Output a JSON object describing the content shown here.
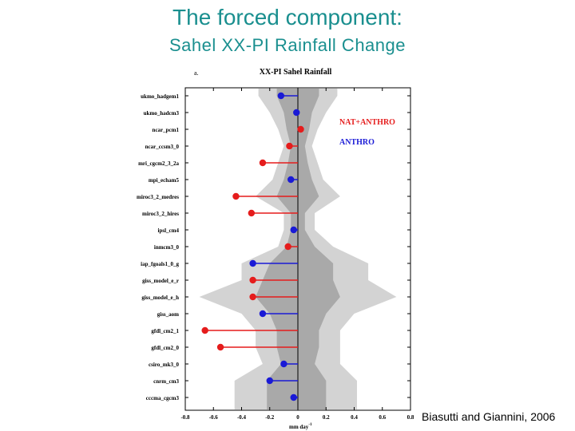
{
  "header": {
    "title": "The forced component:",
    "subtitle": "Sahel XX-PI Rainfall Change"
  },
  "credit": "Biasutti and Giannini, 2006",
  "chart_data": {
    "type": "lollipop",
    "panel_label": "a.",
    "title": "XX-PI Sahel Rainfall",
    "xlabel": "mm day",
    "xlabel_exp": "-1",
    "xlim": [
      -0.8,
      0.8
    ],
    "xticks": [
      "-0.8",
      "-0.6",
      "-0.4",
      "-0.2",
      "0",
      "0.2",
      "0.4",
      "0.6",
      "0.8"
    ],
    "legend": [
      {
        "label": "NAT+ANTHRO",
        "color": "#e51c1c"
      },
      {
        "label": "ANTHRO",
        "color": "#1a1ad6"
      }
    ],
    "models": [
      {
        "name": "ukmo_hadgem1",
        "value": -0.12,
        "group": "ANTHRO"
      },
      {
        "name": "ukmo_hadcm3",
        "value": -0.01,
        "group": "ANTHRO"
      },
      {
        "name": "ncar_pcm1",
        "value": 0.02,
        "group": "NAT+ANTHRO"
      },
      {
        "name": "ncar_ccsm3_0",
        "value": -0.06,
        "group": "NAT+ANTHRO"
      },
      {
        "name": "mri_cgcm2_3_2a",
        "value": -0.25,
        "group": "NAT+ANTHRO"
      },
      {
        "name": "mpi_echam5",
        "value": -0.05,
        "group": "ANTHRO"
      },
      {
        "name": "miroc3_2_medres",
        "value": -0.44,
        "group": "NAT+ANTHRO"
      },
      {
        "name": "miroc3_2_hires",
        "value": -0.33,
        "group": "NAT+ANTHRO"
      },
      {
        "name": "ipsl_cm4",
        "value": -0.03,
        "group": "ANTHRO"
      },
      {
        "name": "inmcm3_0",
        "value": -0.07,
        "group": "NAT+ANTHRO"
      },
      {
        "name": "iap_fgoals1_0_g",
        "value": -0.32,
        "group": "ANTHRO"
      },
      {
        "name": "giss_model_e_r",
        "value": -0.32,
        "group": "NAT+ANTHRO"
      },
      {
        "name": "giss_model_e_h",
        "value": -0.32,
        "group": "NAT+ANTHRO"
      },
      {
        "name": "giss_aom",
        "value": -0.25,
        "group": "ANTHRO"
      },
      {
        "name": "gfdl_cm2_1",
        "value": -0.66,
        "group": "NAT+ANTHRO"
      },
      {
        "name": "gfdl_cm2_0",
        "value": -0.55,
        "group": "NAT+ANTHRO"
      },
      {
        "name": "csiro_mk3_0",
        "value": -0.1,
        "group": "ANTHRO"
      },
      {
        "name": "cnrm_cm3",
        "value": -0.2,
        "group": "ANTHRO"
      },
      {
        "name": "cccma_cgcm3",
        "value": -0.03,
        "group": "ANTHRO"
      }
    ],
    "envelope_light": {
      "left": [
        -0.28,
        -0.2,
        -0.14,
        -0.1,
        -0.14,
        -0.18,
        -0.3,
        -0.1,
        -0.1,
        -0.14,
        -0.4,
        -0.4,
        -0.7,
        -0.4,
        -0.3,
        -0.3,
        -0.25,
        -0.45,
        -0.45
      ],
      "right": [
        0.28,
        0.2,
        0.14,
        0.1,
        0.14,
        0.18,
        0.3,
        0.12,
        0.12,
        0.25,
        0.5,
        0.5,
        0.7,
        0.4,
        0.3,
        0.3,
        0.3,
        0.42,
        0.42
      ]
    },
    "envelope_dark": {
      "left": [
        -0.15,
        -0.1,
        -0.08,
        -0.05,
        -0.07,
        -0.1,
        -0.15,
        -0.05,
        -0.05,
        -0.08,
        -0.2,
        -0.25,
        -0.3,
        -0.2,
        -0.15,
        -0.15,
        -0.12,
        -0.22,
        -0.22
      ],
      "right": [
        0.15,
        0.1,
        0.08,
        0.05,
        0.07,
        0.1,
        0.15,
        0.05,
        0.05,
        0.12,
        0.25,
        0.25,
        0.3,
        0.2,
        0.15,
        0.15,
        0.12,
        0.2,
        0.2
      ]
    }
  }
}
